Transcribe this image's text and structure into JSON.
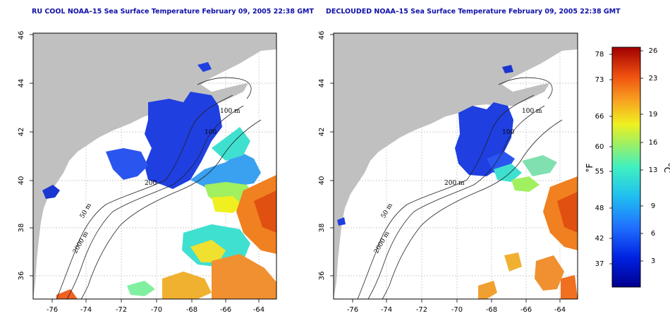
{
  "maps": [
    {
      "title": "RU COOL NOAA–15 Sea Surface Temperature February 09, 2005 22:38 GMT",
      "contour_labels": [
        "100 m",
        "100",
        "200",
        "50 m",
        "2000 m"
      ]
    },
    {
      "title": "DECLOUDED NOAA–15 Sea Surface Temperature February 09, 2005 22:38 GMT",
      "contour_labels": [
        "100 m",
        "100",
        "200 m",
        "50 m",
        "2000 m"
      ]
    }
  ],
  "axes": {
    "lon_ticks": [
      "-76",
      "-74",
      "-72",
      "-70",
      "-68",
      "-66",
      "-64"
    ],
    "lat_ticks": [
      "36",
      "38",
      "40",
      "42",
      "44",
      "46"
    ]
  },
  "colorbar": {
    "fahrenheit_label": "°F",
    "celsius_label": "°C",
    "fahrenheit_ticks": [
      "78",
      "73",
      "66",
      "60",
      "55",
      "48",
      "42",
      "37"
    ],
    "celsius_ticks": [
      "26",
      "23",
      "19",
      "16",
      "13",
      "9",
      "6",
      "3"
    ]
  },
  "colors": {
    "land": "#c0c0c0",
    "cold": "#1f3fe0",
    "mid": "#40e0d0",
    "warm": "#f06020",
    "title": "#1010a8"
  }
}
